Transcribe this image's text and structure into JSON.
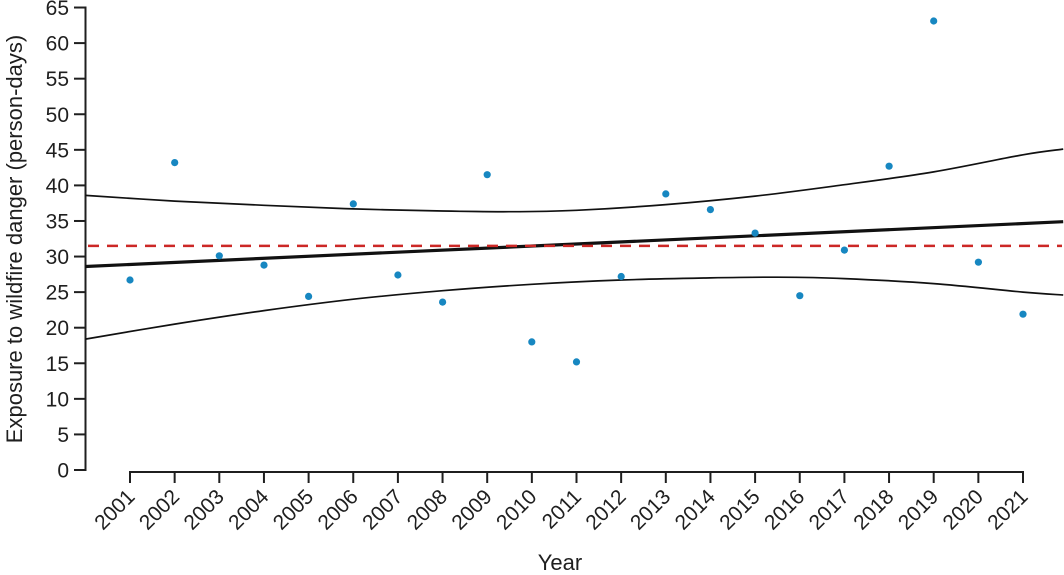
{
  "chart_data": {
    "type": "scatter",
    "title": "",
    "xlabel": "Year",
    "ylabel": "Exposure to wildfire danger (person-days)",
    "x": [
      2001,
      2002,
      2003,
      2004,
      2005,
      2006,
      2007,
      2008,
      2009,
      2010,
      2011,
      2012,
      2013,
      2014,
      2015,
      2016,
      2017,
      2018,
      2019,
      2020,
      2021
    ],
    "values": [
      26.7,
      43.2,
      30.1,
      28.8,
      24.4,
      37.4,
      27.4,
      23.6,
      41.5,
      18.0,
      15.2,
      27.2,
      38.8,
      36.6,
      33.3,
      24.5,
      30.9,
      42.7,
      63.1,
      29.2,
      21.9
    ],
    "yticks": [
      0,
      5,
      10,
      15,
      20,
      25,
      30,
      35,
      40,
      45,
      50,
      55,
      60,
      65
    ],
    "ylim": [
      0,
      65
    ],
    "xlim": [
      2000.0,
      2021.9
    ],
    "grid": false,
    "legend": null,
    "point_color": "#1787c1",
    "axis_color": "#1f1f1f",
    "mean_line": {
      "value": 31.5,
      "style": "dashed",
      "color": "#cc2826"
    },
    "trend_line": {
      "x": [
        2000.0,
        2021.9
      ],
      "values": [
        28.6,
        34.9
      ],
      "color": "#111111"
    },
    "confidence_band": {
      "upper": {
        "x": [
          2000.0,
          2002,
          2004,
          2006,
          2008,
          2009.5,
          2011,
          2013,
          2015,
          2017,
          2019,
          2021,
          2021.9
        ],
        "values": [
          38.6,
          37.8,
          37.2,
          36.7,
          36.4,
          36.3,
          36.5,
          37.3,
          38.5,
          40.1,
          41.9,
          44.3,
          45.1
        ]
      },
      "lower": {
        "x": [
          2000.0,
          2002,
          2004,
          2006,
          2008,
          2010,
          2012,
          2014,
          2015.5,
          2017,
          2019,
          2021,
          2021.9
        ],
        "values": [
          18.4,
          20.5,
          22.4,
          24.0,
          25.2,
          26.1,
          26.7,
          27.0,
          27.1,
          26.9,
          26.2,
          25.0,
          24.6
        ]
      }
    }
  }
}
